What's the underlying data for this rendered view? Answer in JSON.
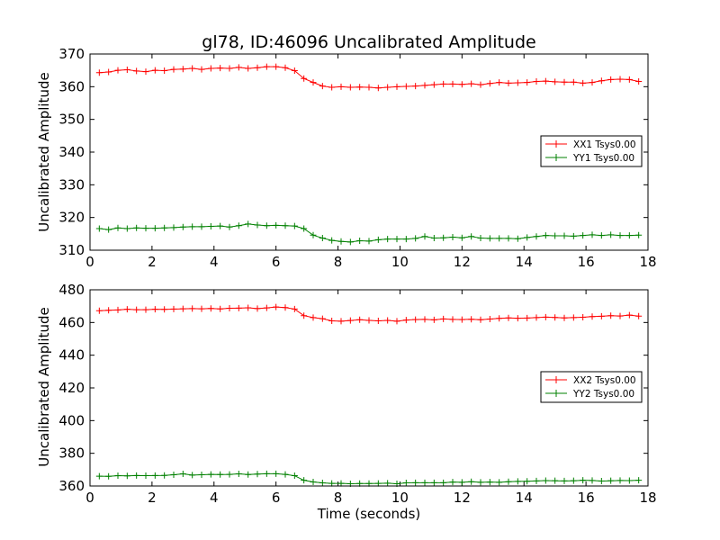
{
  "chart_data": [
    {
      "type": "line",
      "title": "gl78, ID:46096 Uncalibrated Amplitude",
      "xlabel": "",
      "ylabel": "Uncalibrated Amplitude",
      "xlim": [
        0,
        18
      ],
      "ylim": [
        310,
        370
      ],
      "xticks": [
        0,
        2,
        4,
        6,
        8,
        10,
        12,
        14,
        16,
        18
      ],
      "yticks": [
        310,
        320,
        330,
        340,
        350,
        360,
        370
      ],
      "legend_position": "center-right",
      "x": [
        0.3,
        0.6,
        0.9,
        1.2,
        1.5,
        1.8,
        2.1,
        2.4,
        2.7,
        3.0,
        3.3,
        3.6,
        3.9,
        4.2,
        4.5,
        4.8,
        5.1,
        5.4,
        5.7,
        6.0,
        6.3,
        6.6,
        6.9,
        7.2,
        7.5,
        7.8,
        8.1,
        8.4,
        8.7,
        9.0,
        9.3,
        9.6,
        9.9,
        10.2,
        10.5,
        10.8,
        11.1,
        11.4,
        11.7,
        12.0,
        12.3,
        12.6,
        12.9,
        13.2,
        13.5,
        13.8,
        14.1,
        14.4,
        14.7,
        15.0,
        15.3,
        15.6,
        15.9,
        16.2,
        16.5,
        16.8,
        17.1,
        17.4,
        17.7
      ],
      "series": [
        {
          "name": "XX1 Tsys0.00",
          "color": "#ff0000",
          "values": [
            364.3,
            364.5,
            365.0,
            365.2,
            364.8,
            364.6,
            365.0,
            364.9,
            365.3,
            365.4,
            365.6,
            365.3,
            365.6,
            365.7,
            365.6,
            365.9,
            365.6,
            365.8,
            366.1,
            366.1,
            365.8,
            364.9,
            362.5,
            361.3,
            360.2,
            359.8,
            360.0,
            359.8,
            359.9,
            359.8,
            359.6,
            359.8,
            360.0,
            360.1,
            360.2,
            360.4,
            360.6,
            360.8,
            360.8,
            360.7,
            360.9,
            360.6,
            361.0,
            361.3,
            361.1,
            361.2,
            361.3,
            361.6,
            361.7,
            361.5,
            361.4,
            361.4,
            361.1,
            361.3,
            361.8,
            362.2,
            362.3,
            362.2,
            361.6
          ]
        },
        {
          "name": "YY1 Tsys0.00",
          "color": "#008000",
          "values": [
            316.6,
            316.3,
            316.8,
            316.6,
            316.8,
            316.7,
            316.7,
            316.8,
            316.9,
            317.1,
            317.2,
            317.2,
            317.3,
            317.4,
            317.1,
            317.5,
            318.0,
            317.7,
            317.5,
            317.6,
            317.5,
            317.4,
            316.6,
            314.6,
            313.7,
            313.0,
            312.7,
            312.5,
            312.9,
            312.8,
            313.2,
            313.4,
            313.4,
            313.4,
            313.6,
            314.2,
            313.7,
            313.8,
            314.0,
            313.8,
            314.2,
            313.7,
            313.6,
            313.6,
            313.6,
            313.5,
            313.9,
            314.2,
            314.5,
            314.4,
            314.4,
            314.3,
            314.5,
            314.7,
            314.5,
            314.7,
            314.5,
            314.5,
            314.6
          ]
        }
      ]
    },
    {
      "type": "line",
      "title": "",
      "xlabel": "Time (seconds)",
      "ylabel": "Uncalibrated Amplitude",
      "xlim": [
        0,
        18
      ],
      "ylim": [
        360,
        480
      ],
      "xticks": [
        0,
        2,
        4,
        6,
        8,
        10,
        12,
        14,
        16,
        18
      ],
      "yticks": [
        360,
        380,
        400,
        420,
        440,
        460,
        480
      ],
      "legend_position": "center-right",
      "x": [
        0.3,
        0.6,
        0.9,
        1.2,
        1.5,
        1.8,
        2.1,
        2.4,
        2.7,
        3.0,
        3.3,
        3.6,
        3.9,
        4.2,
        4.5,
        4.8,
        5.1,
        5.4,
        5.7,
        6.0,
        6.3,
        6.6,
        6.9,
        7.2,
        7.5,
        7.8,
        8.1,
        8.4,
        8.7,
        9.0,
        9.3,
        9.6,
        9.9,
        10.2,
        10.5,
        10.8,
        11.1,
        11.4,
        11.7,
        12.0,
        12.3,
        12.6,
        12.9,
        13.2,
        13.5,
        13.8,
        14.1,
        14.4,
        14.7,
        15.0,
        15.3,
        15.6,
        15.9,
        16.2,
        16.5,
        16.8,
        17.1,
        17.4,
        17.7
      ],
      "series": [
        {
          "name": "XX2 Tsys0.00",
          "color": "#ff0000",
          "values": [
            467.2,
            467.5,
            467.7,
            468.1,
            467.8,
            467.8,
            468.1,
            468.0,
            468.2,
            468.4,
            468.5,
            468.4,
            468.6,
            468.3,
            468.7,
            468.8,
            469.0,
            468.5,
            468.9,
            469.5,
            469.1,
            468.2,
            464.2,
            463.0,
            462.3,
            461.0,
            460.8,
            461.2,
            461.7,
            461.3,
            461.0,
            461.3,
            460.8,
            461.5,
            461.8,
            461.9,
            461.6,
            462.2,
            461.9,
            461.8,
            462.0,
            461.7,
            462.1,
            462.5,
            462.8,
            462.6,
            462.7,
            463.0,
            463.3,
            463.1,
            462.8,
            463.0,
            463.2,
            463.6,
            463.8,
            464.2,
            464.0,
            464.5,
            463.9
          ]
        },
        {
          "name": "YY2 Tsys0.00",
          "color": "#008000",
          "values": [
            366.0,
            365.9,
            366.3,
            366.2,
            366.4,
            366.3,
            366.4,
            366.5,
            366.9,
            367.4,
            366.7,
            366.9,
            367.1,
            367.0,
            367.1,
            367.4,
            367.0,
            367.3,
            367.5,
            367.5,
            367.1,
            366.3,
            363.5,
            362.5,
            361.9,
            361.6,
            361.6,
            361.4,
            361.5,
            361.5,
            361.6,
            361.7,
            361.4,
            361.9,
            362.0,
            362.0,
            362.0,
            362.0,
            362.4,
            362.3,
            362.6,
            362.3,
            362.4,
            362.3,
            362.6,
            362.8,
            362.9,
            363.1,
            363.3,
            363.2,
            363.1,
            363.2,
            363.5,
            363.4,
            363.0,
            363.2,
            363.4,
            363.3,
            363.5
          ]
        }
      ]
    }
  ]
}
